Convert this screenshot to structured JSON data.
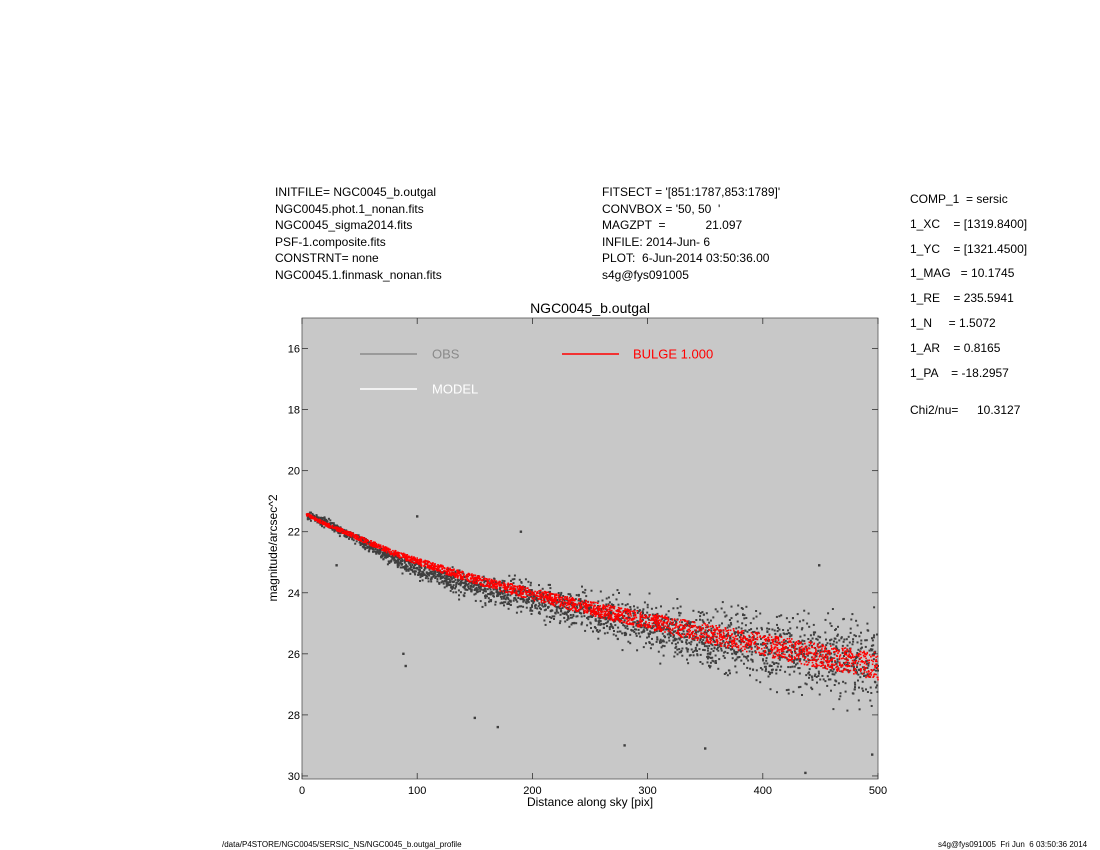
{
  "header_left": [
    "INITFILE= NGC0045_b.outgal",
    "NGC0045.phot.1_nonan.fits",
    "NGC0045_sigma2014.fits",
    "PSF-1.composite.fits",
    "CONSTRNT= none",
    "NGC0045.1.finmask_nonan.fits"
  ],
  "header_mid": [
    "FITSECT = '[851:1787,853:1789]'",
    "CONVBOX = '50, 50  '",
    "MAGZPT  =            21.097",
    "INFILE: 2014-Jun- 6",
    "PLOT:  6-Jun-2014 03:50:36.00",
    "s4g@fys091005"
  ],
  "params": [
    "COMP_1  = sersic",
    "1_XC    = [1319.8400]",
    "1_YC    = [1321.4500]",
    "1_MAG   = 10.1745",
    "1_RE    = 235.5941",
    "1_N     = 1.5072",
    "1_AR    = 0.8165",
    "1_PA    = -18.2957"
  ],
  "chi2_label": "Chi2/nu=",
  "chi2_value": "10.3127",
  "footer": {
    "path": "/data/P4STORE/NGC0045/SERSIC_NS/NGC0045_b.outgal_profile",
    "stamp": "s4g@fys091005  Fri Jun  6 03:50:36 2014"
  },
  "colors": {
    "plot_bg": "#c8c8c8",
    "obs": "#3f3f3f",
    "obs_legend": "#8a8a8a",
    "model": "#ffffff",
    "bulge": "#ff0000"
  },
  "chart_data": {
    "type": "scatter",
    "title": "NGC0045_b.outgal",
    "xlabel": "Distance along sky [pix]",
    "ylabel": "magnitude/arcsec^2",
    "xlim": [
      0,
      500
    ],
    "ylim": [
      30.1,
      15.0
    ],
    "y_inverted": true,
    "xticks": [
      0,
      100,
      200,
      300,
      400,
      500
    ],
    "yticks": [
      16,
      18,
      20,
      22,
      24,
      26,
      28,
      30
    ],
    "legend": [
      {
        "key": "obs",
        "label": "OBS",
        "color": "#8a8a8a"
      },
      {
        "key": "model",
        "label": "MODEL",
        "color": "#ffffff"
      },
      {
        "key": "bulge",
        "label": "BULGE  1.000",
        "color": "#ff0000"
      }
    ],
    "series": [
      {
        "name": "OBS",
        "color": "#3f3f3f",
        "x": [
          10,
          25,
          40,
          55,
          70,
          85,
          100,
          120,
          140,
          160,
          180,
          200,
          220,
          240,
          260,
          280,
          300,
          320,
          340,
          360,
          380,
          400,
          420,
          440,
          460,
          480,
          500
        ],
        "y": [
          21.5,
          21.8,
          22.1,
          22.4,
          22.7,
          23.0,
          23.2,
          23.5,
          23.7,
          23.9,
          24.0,
          24.2,
          24.4,
          24.6,
          24.8,
          24.9,
          25.1,
          25.3,
          25.4,
          25.6,
          25.7,
          25.8,
          25.9,
          26.0,
          26.1,
          26.2,
          26.3
        ]
      },
      {
        "name": "BULGE  1.000",
        "color": "#ff0000",
        "x": [
          5,
          20,
          40,
          60,
          80,
          100,
          130,
          160,
          200,
          240,
          280,
          320,
          360,
          400,
          440,
          480,
          500
        ],
        "y": [
          21.45,
          21.75,
          22.05,
          22.38,
          22.7,
          22.97,
          23.33,
          23.67,
          24.05,
          24.42,
          24.76,
          25.08,
          25.4,
          25.7,
          26.0,
          26.27,
          26.4
        ]
      }
    ],
    "outliers": [
      {
        "x": 100,
        "y": 21.5
      },
      {
        "x": 190,
        "y": 22.0
      },
      {
        "x": 150,
        "y": 28.1
      },
      {
        "x": 88,
        "y": 26.0
      },
      {
        "x": 90,
        "y": 26.4
      },
      {
        "x": 280,
        "y": 29.0
      },
      {
        "x": 350,
        "y": 29.1
      },
      {
        "x": 437,
        "y": 29.9
      },
      {
        "x": 449,
        "y": 23.1
      },
      {
        "x": 30,
        "y": 23.1
      },
      {
        "x": 495,
        "y": 29.3
      },
      {
        "x": 170,
        "y": 28.4
      }
    ]
  }
}
